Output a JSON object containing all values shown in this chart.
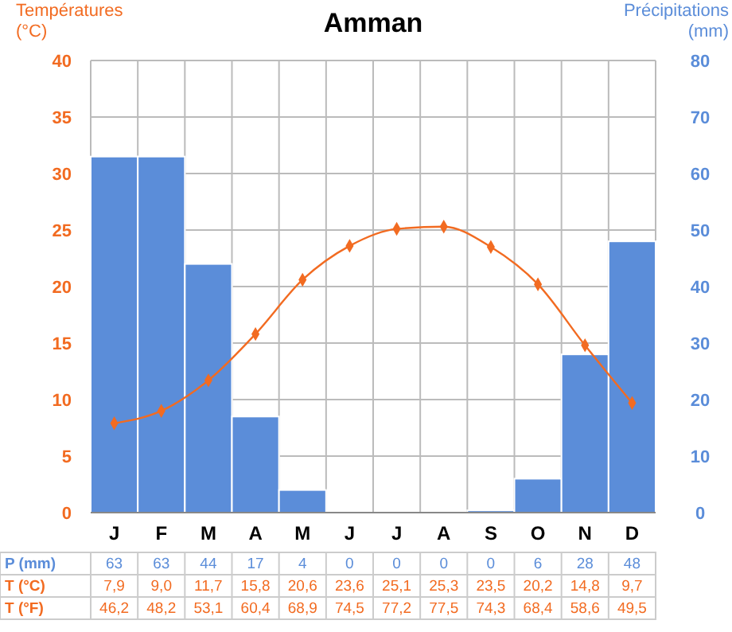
{
  "chart_data": {
    "type": "bar",
    "title": "Amman",
    "ylabel": "Températures (°C)",
    "y2label": "Précipitations (mm)",
    "categories": [
      "J",
      "F",
      "M",
      "A",
      "M",
      "J",
      "J",
      "A",
      "S",
      "O",
      "N",
      "D"
    ],
    "series": [
      {
        "name": "P (mm)",
        "axis": "y2",
        "color": "#5b8dd9",
        "values": [
          63,
          63,
          44,
          17,
          4,
          0,
          0,
          0,
          0.4,
          6,
          28,
          48
        ],
        "value_labels": [
          "63",
          "63",
          "44",
          "17",
          "4",
          "0",
          "0",
          "0",
          "0",
          "6",
          "28",
          "48"
        ]
      },
      {
        "name": "T (°C)",
        "type": "line",
        "axis": "y",
        "color": "#f26b21",
        "marker": "diamond",
        "values": [
          7.9,
          9.0,
          11.7,
          15.8,
          20.6,
          23.6,
          25.1,
          25.3,
          23.5,
          20.2,
          14.8,
          9.7
        ],
        "value_labels": [
          "7,9",
          "9,0",
          "11,7",
          "15,8",
          "20,6",
          "23,6",
          "25,1",
          "25,3",
          "23,5",
          "20,2",
          "14,8",
          "9,7"
        ]
      }
    ],
    "ylim": [
      0,
      40
    ],
    "yticks": [
      0,
      5,
      10,
      15,
      20,
      25,
      30,
      35,
      40
    ],
    "y2lim": [
      0,
      80
    ],
    "y2ticks": [
      0,
      10,
      20,
      30,
      40,
      50,
      60,
      70,
      80
    ],
    "grid": true,
    "annotations": [
      "T (°F)",
      "46,2",
      "48,2",
      "53,1",
      "60,4",
      "68,9",
      "74,5",
      "77,2",
      "77,5",
      "74,3",
      "68,4",
      "58,6",
      "49,5"
    ]
  }
}
